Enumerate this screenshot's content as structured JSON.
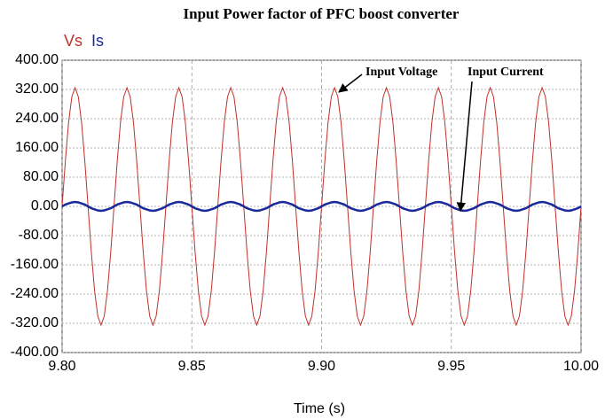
{
  "chart_data": {
    "type": "line",
    "title": "Input Power factor of PFC boost converter",
    "x_label": "Time (s)",
    "legend": "top-left",
    "grid": true,
    "annotations": [
      "Input Voltage",
      "Input Current"
    ],
    "xlim": [
      9.8,
      10.0
    ],
    "xticks": [
      {
        "value": 9.8,
        "label": "9.80"
      },
      {
        "value": 9.85,
        "label": "9.85"
      },
      {
        "value": 9.9,
        "label": "9.90"
      },
      {
        "value": 9.95,
        "label": "9.95"
      },
      {
        "value": 10.0,
        "label": "10.00"
      }
    ],
    "ylim": [
      -400,
      400
    ],
    "yticks": [
      {
        "value": 400,
        "label": "400.00"
      },
      {
        "value": 320,
        "label": "320.00"
      },
      {
        "value": 240,
        "label": "240.00"
      },
      {
        "value": 160,
        "label": "160.00"
      },
      {
        "value": 80,
        "label": "80.00"
      },
      {
        "value": 0,
        "label": "0.00"
      },
      {
        "value": -80,
        "label": "-80.00"
      },
      {
        "value": -160,
        "label": "-160.00"
      },
      {
        "value": -240,
        "label": "-240.00"
      },
      {
        "value": -320,
        "label": "-320.00"
      },
      {
        "value": -400,
        "label": "-400.00"
      }
    ],
    "x": [
      9.8,
      9.80125,
      9.8025,
      9.80375,
      9.805,
      9.80625,
      9.8075,
      9.80875,
      9.81,
      9.81125,
      9.8125,
      9.81375,
      9.815,
      9.81625,
      9.8175,
      9.81875,
      9.82,
      9.82125,
      9.8225,
      9.82375,
      9.825,
      9.82625,
      9.8275,
      9.82875,
      9.83,
      9.83125,
      9.8325,
      9.83375,
      9.835,
      9.83625,
      9.8375,
      9.83875,
      9.84,
      9.84125,
      9.8425,
      9.84375,
      9.845,
      9.84625,
      9.8475,
      9.84875,
      9.85,
      9.85125,
      9.8525,
      9.85375,
      9.855,
      9.85625,
      9.8575,
      9.85875,
      9.86,
      9.86125,
      9.8625,
      9.86375,
      9.865,
      9.86625,
      9.8675,
      9.86875,
      9.87,
      9.87125,
      9.8725,
      9.87375,
      9.875,
      9.87625,
      9.8775,
      9.87875,
      9.88,
      9.88125,
      9.8825,
      9.88375,
      9.885,
      9.88625,
      9.8875,
      9.88875,
      9.89,
      9.89125,
      9.8925,
      9.89375,
      9.895,
      9.89625,
      9.8975,
      9.89875,
      9.9,
      9.90125,
      9.9025,
      9.90375,
      9.905,
      9.90625,
      9.9075,
      9.90875,
      9.91,
      9.91125,
      9.9125,
      9.91375,
      9.915,
      9.91625,
      9.9175,
      9.91875,
      9.92,
      9.92125,
      9.9225,
      9.92375,
      9.925,
      9.92625,
      9.9275,
      9.92875,
      9.93,
      9.93125,
      9.9325,
      9.93375,
      9.935,
      9.93625,
      9.9375,
      9.93875,
      9.94,
      9.94125,
      9.9425,
      9.94375,
      9.945,
      9.94625,
      9.9475,
      9.94875,
      9.95,
      9.95125,
      9.9525,
      9.95375,
      9.955,
      9.95625,
      9.9575,
      9.95875,
      9.96,
      9.96125,
      9.9625,
      9.96375,
      9.965,
      9.96625,
      9.9675,
      9.96875,
      9.97,
      9.97125,
      9.9725,
      9.97375,
      9.975,
      9.97625,
      9.9775,
      9.97875,
      9.98,
      9.98125,
      9.9825,
      9.98375,
      9.985,
      9.98625,
      9.9875,
      9.98875,
      9.99,
      9.99125,
      9.9925,
      9.99375,
      9.995,
      9.99625,
      9.9975,
      9.99875,
      10.0
    ],
    "series": [
      {
        "name": "Vs",
        "color": "#c0302a",
        "values": [
          0,
          124,
          230,
          300,
          325,
          300,
          230,
          124,
          0,
          -124,
          -230,
          -300,
          -325,
          -300,
          -230,
          -124,
          0,
          124,
          230,
          300,
          325,
          300,
          230,
          124,
          0,
          -124,
          -230,
          -300,
          -325,
          -300,
          -230,
          -124,
          0,
          124,
          230,
          300,
          325,
          300,
          230,
          124,
          0,
          -124,
          -230,
          -300,
          -325,
          -300,
          -230,
          -124,
          0,
          124,
          230,
          300,
          325,
          300,
          230,
          124,
          0,
          -124,
          -230,
          -300,
          -325,
          -300,
          -230,
          -124,
          0,
          124,
          230,
          300,
          325,
          300,
          230,
          124,
          0,
          -124,
          -230,
          -300,
          -325,
          -300,
          -230,
          -124,
          0,
          124,
          230,
          300,
          325,
          300,
          230,
          124,
          0,
          -124,
          -230,
          -300,
          -325,
          -300,
          -230,
          -124,
          0,
          124,
          230,
          300,
          325,
          300,
          230,
          124,
          0,
          -124,
          -230,
          -300,
          -325,
          -300,
          -230,
          -124,
          0,
          124,
          230,
          300,
          325,
          300,
          230,
          124,
          0,
          -124,
          -230,
          -300,
          -325,
          -300,
          -230,
          -124,
          0,
          124,
          230,
          300,
          325,
          300,
          230,
          124,
          0,
          -124,
          -230,
          -300,
          -325,
          -300,
          -230,
          -124,
          0,
          124,
          230,
          300,
          325,
          300,
          230,
          124,
          0,
          -124,
          -230,
          -300,
          -325,
          -300,
          -230,
          -124,
          0
        ]
      },
      {
        "name": "Is",
        "color": "#1a2a9a",
        "values": [
          0,
          5,
          8,
          11,
          12,
          11,
          8,
          5,
          0,
          -5,
          -8,
          -11,
          -12,
          -11,
          -8,
          -5,
          0,
          5,
          8,
          11,
          12,
          11,
          8,
          5,
          0,
          -5,
          -8,
          -11,
          -12,
          -11,
          -8,
          -5,
          0,
          5,
          8,
          11,
          12,
          11,
          8,
          5,
          0,
          -5,
          -8,
          -11,
          -12,
          -11,
          -8,
          -5,
          0,
          5,
          8,
          11,
          12,
          11,
          8,
          5,
          0,
          -5,
          -8,
          -11,
          -12,
          -11,
          -8,
          -5,
          0,
          5,
          8,
          11,
          12,
          11,
          8,
          5,
          0,
          -5,
          -8,
          -11,
          -12,
          -11,
          -8,
          -5,
          0,
          5,
          8,
          11,
          12,
          11,
          8,
          5,
          0,
          -5,
          -8,
          -11,
          -12,
          -11,
          -8,
          -5,
          0,
          5,
          8,
          11,
          12,
          11,
          8,
          5,
          0,
          -5,
          -8,
          -11,
          -12,
          -11,
          -8,
          -5,
          0,
          5,
          8,
          11,
          12,
          11,
          8,
          5,
          0,
          -5,
          -8,
          -11,
          -12,
          -11,
          -8,
          -5,
          0,
          5,
          8,
          11,
          12,
          11,
          8,
          5,
          0,
          -5,
          -8,
          -11,
          -12,
          -11,
          -8,
          -5,
          0,
          5,
          8,
          11,
          12,
          11,
          8,
          5,
          0,
          -5,
          -8,
          -11,
          -12,
          -11,
          -8,
          -5,
          0
        ]
      }
    ]
  }
}
